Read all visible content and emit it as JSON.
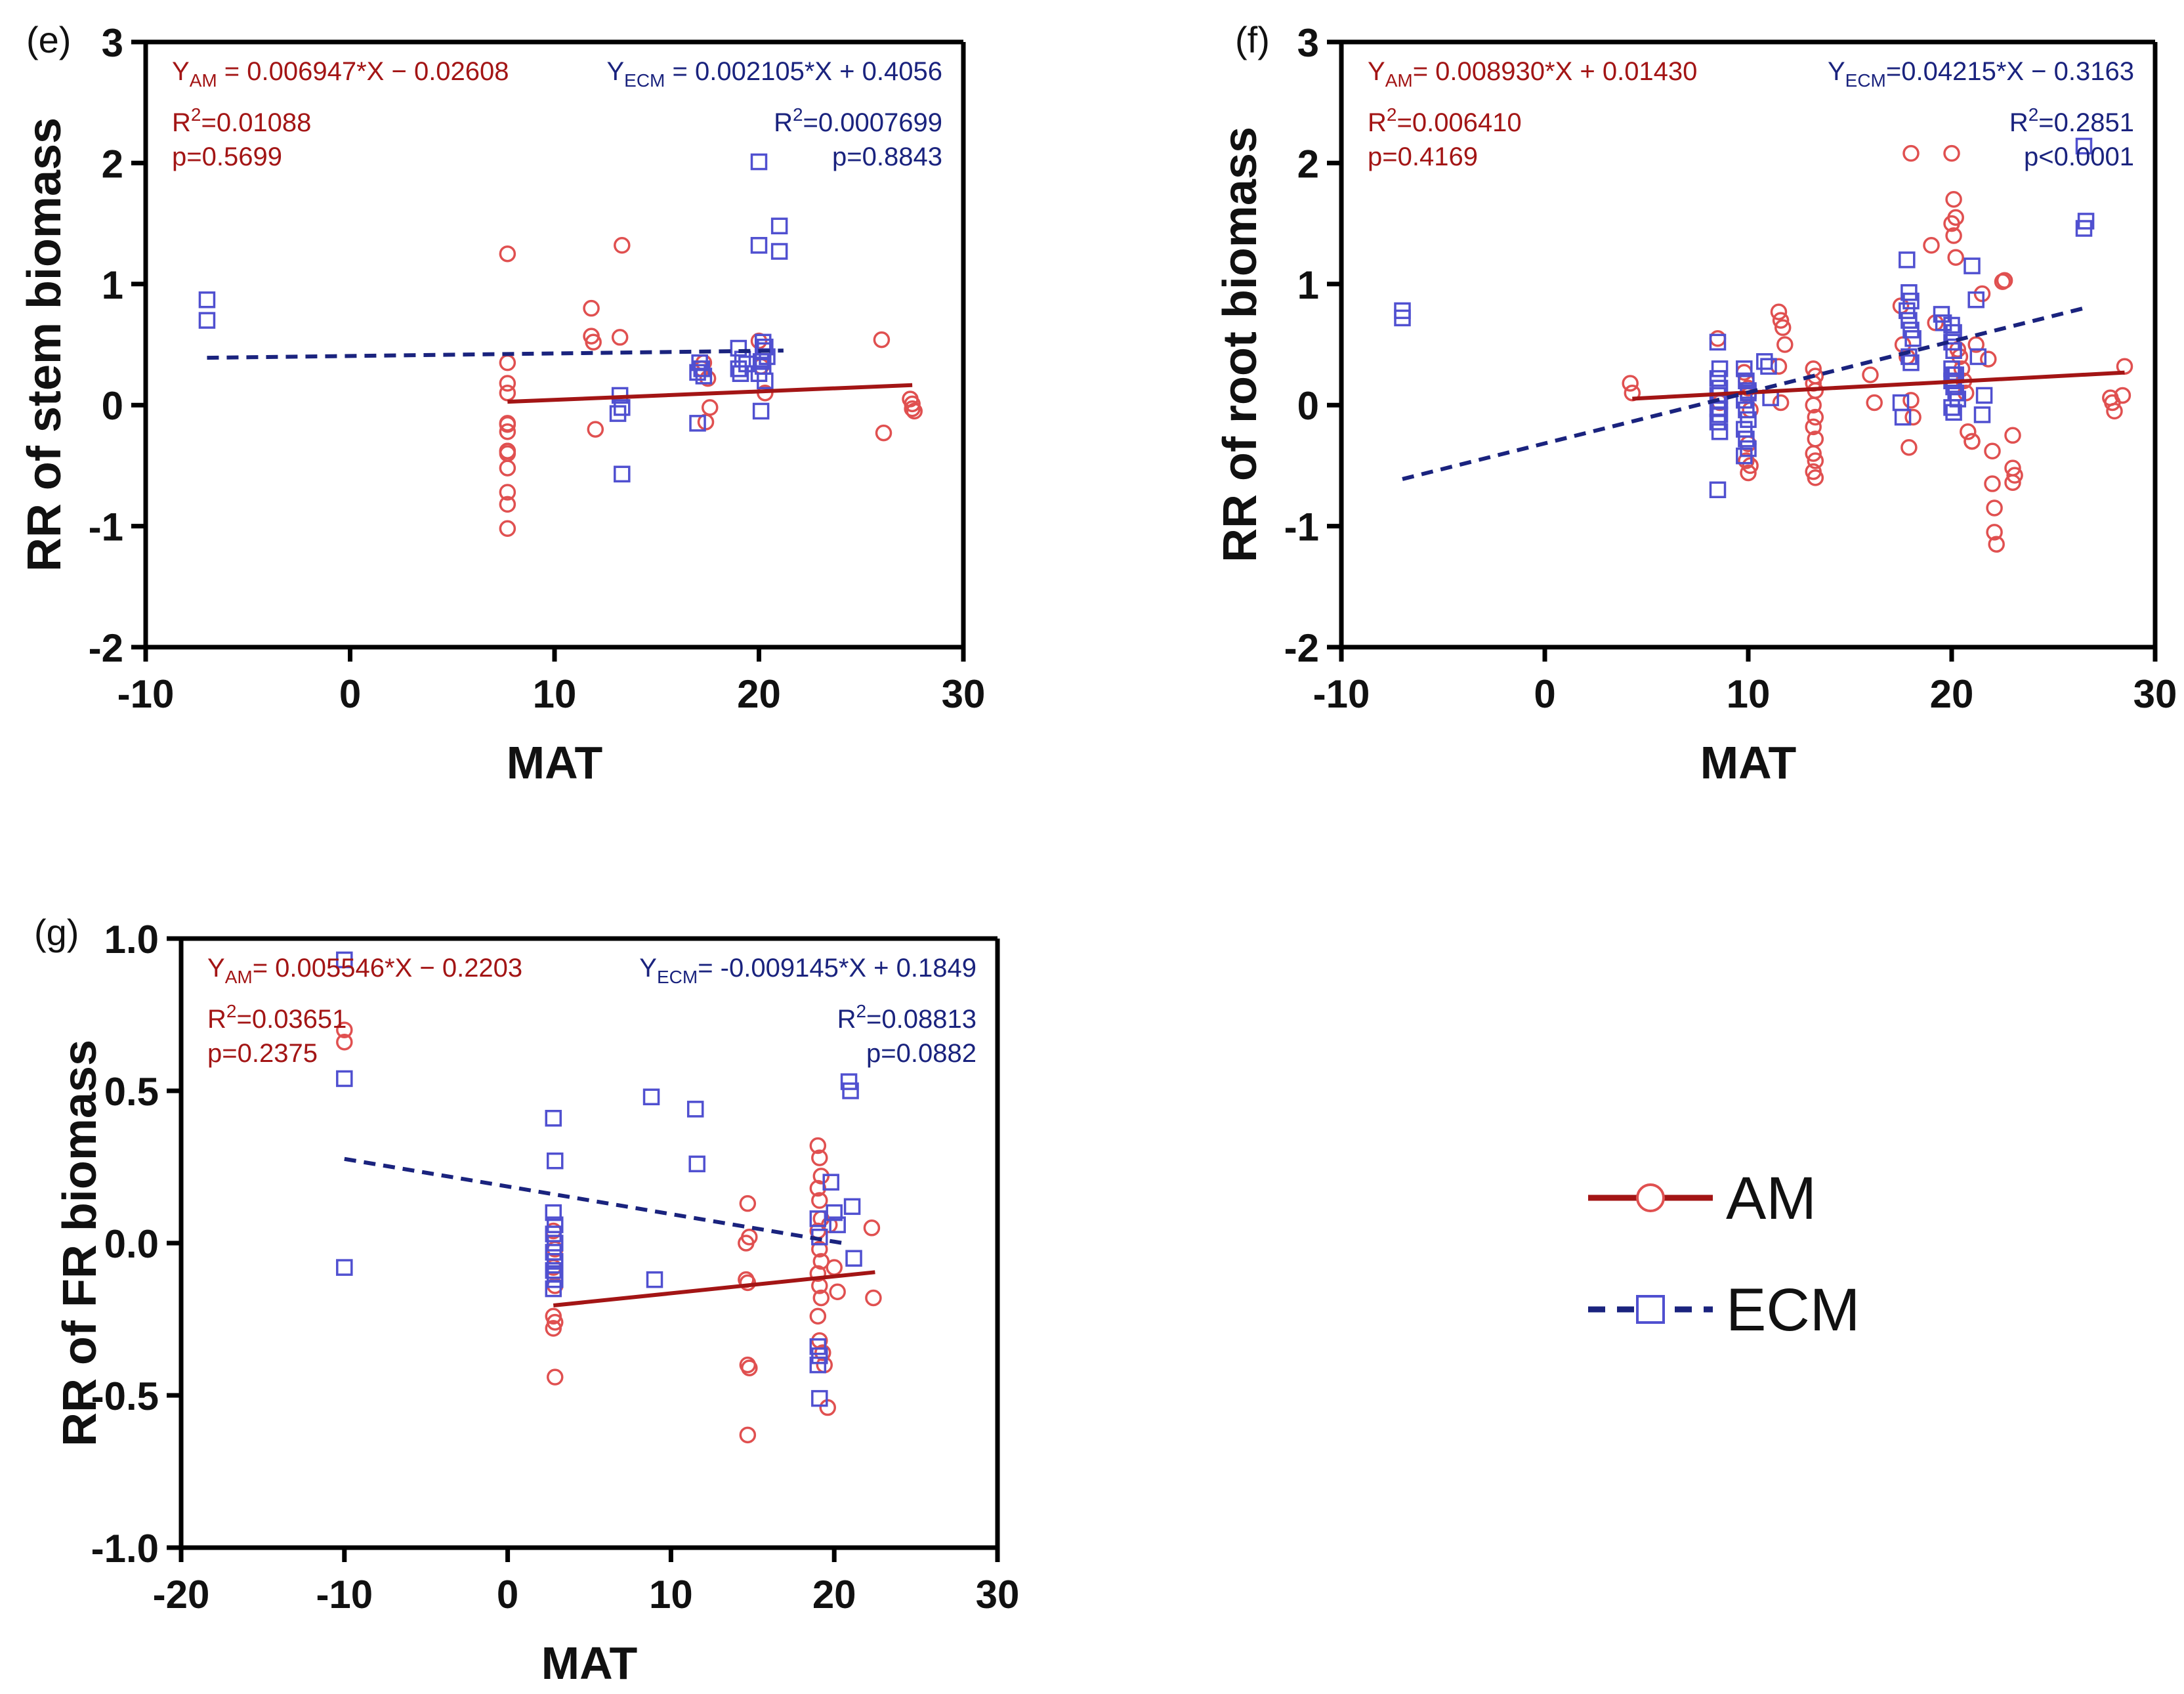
{
  "colors": {
    "am": "#a31515",
    "ecm": "#1a237e",
    "am_marker": "#e05050",
    "ecm_marker": "#5050d0",
    "axis": "#000000"
  },
  "legend": {
    "items": [
      {
        "name": "AM",
        "series": "am"
      },
      {
        "name": "ECM",
        "series": "ecm"
      }
    ]
  },
  "chart_data": [
    {
      "id": "e",
      "type": "scatter",
      "panel_label": "(e)",
      "ylabel": "RR of stem biomass",
      "xlabel": "MAT",
      "xlim": [
        -10,
        30
      ],
      "ylim": [
        -2,
        3
      ],
      "xticks": [
        "-10",
        "0",
        "10",
        "20",
        "30"
      ],
      "yticks": [
        "-2",
        "-1",
        "0",
        "1",
        "2",
        "3"
      ],
      "am_annotation": {
        "eq_prefix": "Y",
        "eq_sub": "AM",
        "eq_rest": " = 0.006947*X − 0.02608",
        "r2": "=0.01088",
        "p": "p=0.5699"
      },
      "ecm_annotation": {
        "eq_prefix": "Y",
        "eq_sub": "ECM",
        "eq_rest": " = 0.002105*X + 0.4056",
        "r2": "=0.0007699",
        "p": "p=0.8843"
      },
      "am_fit": {
        "x": [
          7.7,
          27.5
        ],
        "y": [
          0.0274,
          0.165
        ]
      },
      "ecm_fit": {
        "x": [
          -7,
          21.2
        ],
        "y": [
          0.3909,
          0.4502
        ]
      },
      "am_points": {
        "x": [
          7.7,
          7.7,
          7.7,
          7.7,
          7.7,
          7.7,
          7.7,
          7.7,
          7.7,
          7.7,
          7.7,
          7.7,
          7.7,
          7.7,
          11.8,
          11.8,
          11.9,
          12.0,
          13.3,
          13.2,
          17.3,
          17.5,
          17.6,
          17.4,
          17.2,
          20.0,
          20.1,
          20.3,
          26.0,
          26.1,
          27.4,
          27.5,
          27.5,
          27.6
        ],
        "y": [
          1.25,
          0.35,
          0.18,
          0.1,
          -0.15,
          -0.22,
          -0.38,
          -0.4,
          -0.52,
          -0.72,
          -0.82,
          -1.02,
          -0.38,
          -0.16,
          0.8,
          0.57,
          0.52,
          -0.2,
          1.32,
          0.56,
          0.35,
          0.22,
          -0.02,
          -0.14,
          0.3,
          0.53,
          0.32,
          0.1,
          0.54,
          -0.23,
          0.05,
          0.01,
          -0.03,
          -0.05
        ]
      },
      "ecm_points": {
        "x": [
          -7,
          -7,
          13.2,
          13.3,
          13.1,
          13.3,
          17.1,
          17.2,
          17.0,
          17.3,
          17.0,
          19.0,
          19.2,
          19.4,
          19.0,
          19.1,
          20.0,
          20.2,
          20.3,
          20.4,
          20.1,
          20.2,
          20.0,
          20.3,
          20.0,
          20.1,
          21.0,
          21.0,
          20.2
        ],
        "y": [
          0.87,
          0.7,
          0.08,
          -0.02,
          -0.07,
          -0.57,
          0.35,
          0.3,
          0.27,
          0.24,
          -0.15,
          0.47,
          0.38,
          0.34,
          0.3,
          0.26,
          2.01,
          0.52,
          0.48,
          0.4,
          0.36,
          0.32,
          0.26,
          0.2,
          1.32,
          -0.05,
          1.48,
          1.27,
          0.45
        ]
      }
    },
    {
      "id": "f",
      "type": "scatter",
      "panel_label": "(f)",
      "ylabel": "RR of root biomass",
      "xlabel": "MAT",
      "xlim": [
        -10,
        30
      ],
      "ylim": [
        -2,
        3
      ],
      "xticks": [
        "-10",
        "0",
        "10",
        "20",
        "30"
      ],
      "yticks": [
        "-2",
        "-1",
        "0",
        "1",
        "2",
        "3"
      ],
      "am_annotation": {
        "eq_prefix": "Y",
        "eq_sub": "AM",
        "eq_rest": "=  0.008930*X + 0.01430",
        "r2": "=0.006410",
        "p": "p=0.4169"
      },
      "ecm_annotation": {
        "eq_prefix": "Y",
        "eq_sub": "ECM",
        "eq_rest": "=0.04215*X − 0.3163",
        "r2": "=0.2851",
        "p": "p<0.0001"
      },
      "am_fit": {
        "x": [
          4.3,
          28.5
        ],
        "y": [
          0.0527,
          0.2688
        ]
      },
      "ecm_fit": {
        "x": [
          -7,
          26.5
        ],
        "y": [
          -0.6114,
          0.8007
        ]
      },
      "am_points": {
        "x": [
          4.2,
          4.3,
          8.5,
          8.6,
          9.8,
          9.9,
          10.0,
          10.0,
          10.1,
          10.0,
          9.9,
          10.1,
          10.0,
          11.5,
          11.6,
          11.7,
          11.8,
          11.5,
          11.6,
          13.2,
          13.3,
          13.2,
          13.3,
          13.2,
          13.3,
          13.2,
          13.3,
          13.2,
          13.3,
          13.2,
          13.3,
          16.0,
          16.2,
          17.5,
          17.6,
          17.8,
          18.0,
          18.1,
          17.9,
          18.0,
          19.0,
          19.2,
          20.0,
          20.1,
          20.2,
          20.0,
          20.1,
          20.2,
          20.3,
          20.4,
          20.5,
          20.6,
          20.7,
          21.0,
          21.2,
          21.5,
          21.8,
          22.0,
          22.0,
          22.1,
          22.1,
          22.2,
          22.5,
          22.6,
          23.0,
          23.0,
          23.1,
          23.0,
          27.8,
          27.9,
          28.0,
          28.5,
          28.4,
          20.8,
          21.0
        ],
        "y": [
          0.18,
          0.1,
          0.55,
          0.02,
          0.27,
          0.2,
          0.14,
          0.08,
          -0.04,
          -0.32,
          -0.46,
          -0.5,
          -0.56,
          0.77,
          0.7,
          0.64,
          0.5,
          0.32,
          0.02,
          0.3,
          0.24,
          0.18,
          0.12,
          0.0,
          -0.1,
          -0.18,
          -0.28,
          -0.4,
          -0.46,
          -0.55,
          -0.6,
          0.25,
          0.02,
          0.82,
          0.5,
          0.4,
          0.04,
          -0.1,
          -0.35,
          2.08,
          1.32,
          0.68,
          2.08,
          1.7,
          1.55,
          1.5,
          1.4,
          1.22,
          0.46,
          0.4,
          0.3,
          0.2,
          0.1,
          -0.3,
          0.5,
          0.92,
          0.38,
          -0.38,
          -0.65,
          -0.85,
          -1.05,
          -1.15,
          1.02,
          1.03,
          -0.25,
          -0.52,
          -0.58,
          -0.64,
          0.06,
          0.02,
          -0.05,
          0.32,
          0.08,
          -0.22,
          -0.3
        ]
      },
      "ecm_points": {
        "x": [
          -7,
          -7,
          8.5,
          8.6,
          8.5,
          8.6,
          8.5,
          8.6,
          8.5,
          8.6,
          8.5,
          8.6,
          8.5,
          9.8,
          9.9,
          10.0,
          9.8,
          9.9,
          10.0,
          9.8,
          9.9,
          10.0,
          9.8,
          10.0,
          10.8,
          11.0,
          11.1,
          17.8,
          17.9,
          18.0,
          17.8,
          17.9,
          18.0,
          18.1,
          17.9,
          18.0,
          17.5,
          17.6,
          19.5,
          19.6,
          20.0,
          20.1,
          20.0,
          20.1,
          20.0,
          20.1,
          20.0,
          20.1,
          20.2,
          20.3,
          20.0,
          20.1,
          20.2,
          21.0,
          21.2,
          21.3,
          21.5,
          21.6,
          26.5,
          26.6,
          26.5
        ],
        "y": [
          0.78,
          0.72,
          0.52,
          0.3,
          0.22,
          0.14,
          0.08,
          0.03,
          -0.03,
          -0.08,
          -0.14,
          -0.22,
          -0.7,
          0.3,
          0.2,
          0.12,
          0.04,
          -0.04,
          -0.12,
          -0.2,
          -0.28,
          -0.36,
          -0.42,
          0.1,
          0.36,
          0.32,
          0.06,
          1.2,
          0.93,
          0.86,
          0.78,
          0.7,
          0.62,
          0.55,
          0.4,
          0.35,
          0.02,
          -0.1,
          0.75,
          0.68,
          0.66,
          0.6,
          0.52,
          0.45,
          0.3,
          0.25,
          0.2,
          0.15,
          0.1,
          0.05,
          -0.02,
          -0.06,
          0.25,
          1.15,
          0.87,
          0.4,
          -0.08,
          0.08,
          2.14,
          1.52,
          1.46
        ]
      }
    },
    {
      "id": "g",
      "type": "scatter",
      "panel_label": "(g)",
      "ylabel": "RR of FR biomass",
      "xlabel": "MAT",
      "xlim": [
        -20,
        30
      ],
      "ylim": [
        -1.0,
        1.0
      ],
      "xticks": [
        "-20",
        "-10",
        "0",
        "10",
        "20",
        "30"
      ],
      "yticks": [
        "-1.0",
        "-0.5",
        "0.0",
        "0.5",
        "1.0"
      ],
      "am_annotation": {
        "eq_prefix": "Y",
        "eq_sub": "AM",
        "eq_rest": "= 0.005546*X − 0.2203",
        "r2": "=0.03651",
        "p": "p=0.2375"
      },
      "ecm_annotation": {
        "eq_prefix": "Y",
        "eq_sub": "ECM",
        "eq_rest": "= -0.009145*X + 0.1849",
        "r2": "=0.08813",
        "p": "p=0.0882"
      },
      "am_fit": {
        "x": [
          2.8,
          22.5
        ],
        "y": [
          -0.2048,
          -0.0955
        ]
      },
      "ecm_fit": {
        "x": [
          -10,
          20.5
        ],
        "y": [
          0.2764,
          0.0002
        ]
      },
      "am_points": {
        "x": [
          -10,
          -10,
          2.8,
          2.9,
          2.8,
          2.9,
          2.8,
          2.9,
          2.8,
          2.9,
          14.7,
          14.8,
          14.6,
          14.7,
          14.8,
          14.7,
          14.6,
          14.7,
          19.0,
          19.1,
          19.2,
          19.0,
          19.1,
          19.2,
          19.0,
          19.1,
          19.2,
          19.0,
          19.1,
          19.2,
          19.0,
          19.1,
          19.3,
          19.4,
          19.6,
          19.7,
          20.0,
          20.2,
          22.3,
          22.4
        ],
        "y": [
          0.7,
          0.66,
          0.04,
          -0.02,
          -0.08,
          -0.14,
          -0.24,
          -0.26,
          -0.28,
          -0.44,
          0.13,
          0.02,
          -0.12,
          -0.4,
          -0.41,
          -0.63,
          0.0,
          -0.13,
          0.32,
          0.28,
          0.22,
          0.18,
          0.14,
          0.08,
          0.04,
          -0.02,
          -0.06,
          -0.1,
          -0.14,
          -0.18,
          -0.24,
          -0.32,
          -0.36,
          -0.4,
          -0.54,
          0.06,
          -0.08,
          -0.16,
          0.05,
          -0.18
        ]
      },
      "ecm_points": {
        "x": [
          -10,
          -10,
          -10,
          2.8,
          2.9,
          2.8,
          2.9,
          2.8,
          2.9,
          2.8,
          2.9,
          2.8,
          2.9,
          2.8,
          2.9,
          8.8,
          9.0,
          11.5,
          11.6,
          19.0,
          19.1,
          19.0,
          19.1,
          19.0,
          19.1,
          19.8,
          20.0,
          20.2,
          20.9,
          21.0,
          21.1,
          21.2
        ],
        "y": [
          0.93,
          0.54,
          -0.08,
          0.41,
          0.27,
          0.1,
          0.06,
          0.03,
          0.0,
          -0.03,
          -0.06,
          -0.09,
          -0.12,
          -0.15,
          -0.1,
          0.48,
          -0.12,
          0.44,
          0.26,
          0.08,
          0.02,
          -0.34,
          -0.37,
          -0.4,
          -0.51,
          0.2,
          0.1,
          0.06,
          0.53,
          0.5,
          0.12,
          -0.05
        ]
      }
    }
  ]
}
